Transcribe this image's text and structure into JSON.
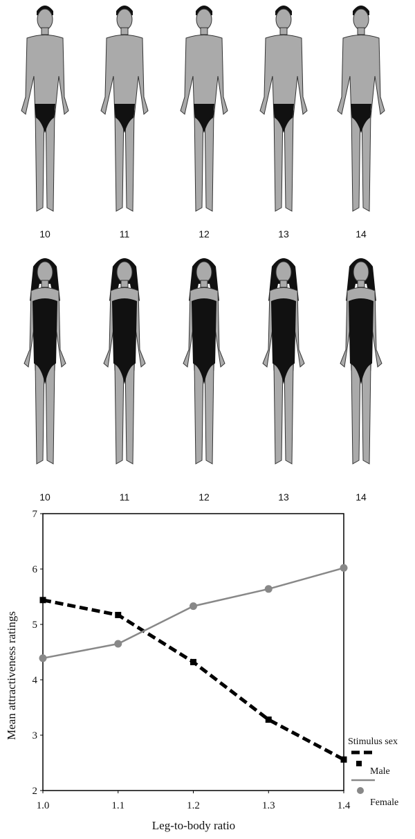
{
  "male_figures": {
    "labels": [
      "10",
      "11",
      "12",
      "13",
      "14"
    ]
  },
  "female_figures": {
    "labels": [
      "10",
      "11",
      "12",
      "13",
      "14"
    ]
  },
  "chart_data": {
    "type": "line",
    "title": "",
    "xlabel": "Leg-to-body ratio",
    "ylabel": "Mean attractiveness ratings",
    "x": [
      1.0,
      1.1,
      1.2,
      1.3,
      1.4
    ],
    "x_tick_labels": [
      "1.0",
      "1.1",
      "1.2",
      "1.3",
      "1.4"
    ],
    "y_tick_labels": [
      "2",
      "3",
      "4",
      "5",
      "6",
      "7"
    ],
    "xlim": [
      1.0,
      1.4
    ],
    "ylim": [
      2,
      7
    ],
    "grid": false,
    "legend": {
      "title": "Stimulus sex",
      "placement": "right, outside plot"
    },
    "series": [
      {
        "name": "Male",
        "values": [
          5.44,
          5.17,
          4.32,
          3.28,
          2.56
        ],
        "color": "#000000",
        "style": "dashed",
        "marker": "square"
      },
      {
        "name": "Female",
        "values": [
          4.39,
          4.65,
          5.33,
          5.64,
          6.02
        ],
        "color": "#888888",
        "style": "solid",
        "marker": "circle"
      }
    ]
  }
}
